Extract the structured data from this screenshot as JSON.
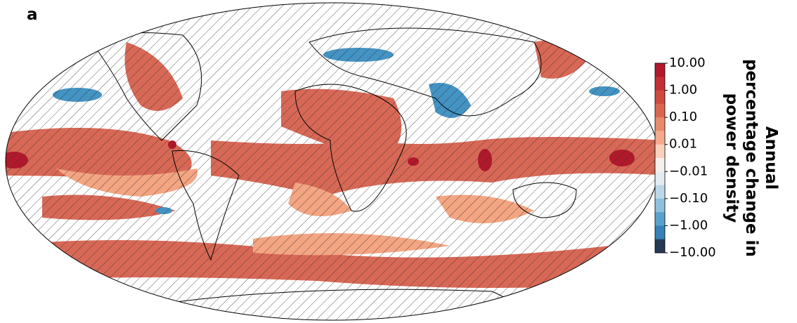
{
  "panel_label": "a",
  "colorbar": {
    "title": [
      "Annual",
      "percentage change in",
      "power density"
    ],
    "ticks": [
      {
        "value": 10,
        "label": "10.00"
      },
      {
        "value": 1,
        "label": "1.00"
      },
      {
        "value": 0.1,
        "label": "0.10"
      },
      {
        "value": 0.01,
        "label": "0.01"
      },
      {
        "value": -0.01,
        "label": "−0.01"
      },
      {
        "value": -0.1,
        "label": "−0.10"
      },
      {
        "value": -1,
        "label": "−1.00"
      },
      {
        "value": -10,
        "label": "−10.00"
      }
    ],
    "colors": [
      "#b2182b",
      "#c42f34",
      "#d0493f",
      "#db6650",
      "#e98a6d",
      "#f4a98c",
      "#f9d1bf",
      "#f5f0ee",
      "#e3ecf3",
      "#bcd8e8",
      "#8dc0dd",
      "#5aa1cd",
      "#3681b9",
      "#253a55"
    ]
  }
}
